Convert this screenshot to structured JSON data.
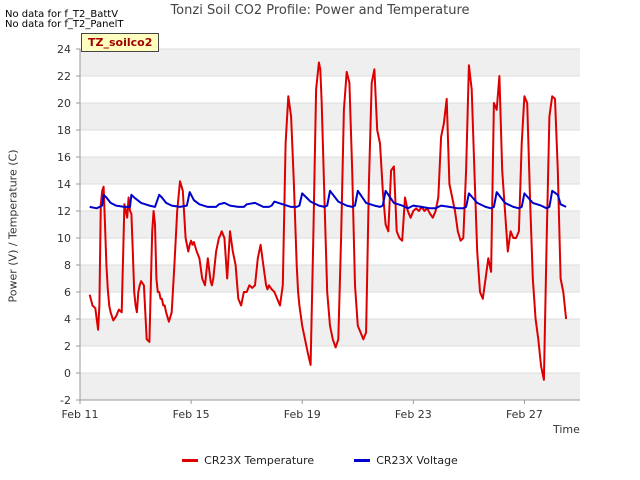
{
  "notes": [
    "No data for f_T2_BattV",
    "No data for f_T2_PanelT"
  ],
  "badge": "TZ_soilco2",
  "colors": {
    "temperature": "#dd0000",
    "voltage": "#0000cc",
    "band": "#efefef",
    "grid": "#dddddd",
    "axis": "#999999"
  },
  "chart_data": {
    "type": "line",
    "title": "Tonzi Soil CO2 Profile: Power and Temperature",
    "xlabel": "Time",
    "ylabel": "Power (V) / Temperature (C)",
    "xlim": [
      11,
      29
    ],
    "ylim": [
      -2,
      24
    ],
    "xticks": [
      {
        "value": 11,
        "label": "Feb 11"
      },
      {
        "value": 15,
        "label": "Feb 15"
      },
      {
        "value": 19,
        "label": "Feb 19"
      },
      {
        "value": 23,
        "label": "Feb 23"
      },
      {
        "value": 27,
        "label": "Feb 27"
      }
    ],
    "yticks": [
      -2,
      0,
      2,
      4,
      6,
      8,
      10,
      12,
      14,
      16,
      18,
      20,
      22,
      24
    ],
    "grid": true,
    "legend_position": "bottom",
    "series": [
      {
        "name": "CR23X Temperature",
        "x": [
          11.35,
          11.45,
          11.55,
          11.65,
          11.7,
          11.75,
          11.8,
          11.85,
          11.9,
          11.95,
          12.0,
          12.05,
          12.1,
          12.15,
          12.2,
          12.3,
          12.4,
          12.5,
          12.6,
          12.7,
          12.75,
          12.8,
          12.85,
          12.9,
          12.95,
          13.0,
          13.05,
          13.1,
          13.15,
          13.2,
          13.3,
          13.4,
          13.5,
          13.6,
          13.65,
          13.7,
          13.75,
          13.8,
          13.85,
          13.9,
          13.95,
          14.0,
          14.05,
          14.1,
          14.2,
          14.3,
          14.4,
          14.5,
          14.6,
          14.7,
          14.8,
          14.9,
          14.95,
          15.0,
          15.05,
          15.1,
          15.2,
          15.3,
          15.4,
          15.5,
          15.6,
          15.7,
          15.75,
          15.8,
          15.85,
          15.9,
          15.95,
          16.0,
          16.05,
          16.1,
          16.2,
          16.3,
          16.4,
          16.5,
          16.6,
          16.7,
          16.8,
          16.9,
          17.0,
          17.1,
          17.2,
          17.3,
          17.4,
          17.5,
          17.6,
          17.7,
          17.75,
          17.8,
          17.9,
          18.0,
          18.1,
          18.2,
          18.3,
          18.4,
          18.5,
          18.6,
          18.7,
          18.75,
          18.8,
          18.85,
          18.9,
          19.0,
          19.1,
          19.2,
          19.3,
          19.4,
          19.5,
          19.6,
          19.65,
          19.7,
          19.8,
          19.9,
          20.0,
          20.1,
          20.2,
          20.3,
          20.4,
          20.5,
          20.6,
          20.7,
          20.8,
          20.9,
          21.0,
          21.1,
          21.2,
          21.3,
          21.4,
          21.5,
          21.6,
          21.7,
          21.8,
          21.9,
          22.0,
          22.1,
          22.2,
          22.3,
          22.4,
          22.5,
          22.6,
          22.7,
          22.8,
          22.9,
          23.0,
          23.1,
          23.2,
          23.3,
          23.4,
          23.5,
          23.6,
          23.7,
          23.8,
          23.9,
          24.0,
          24.1,
          24.2,
          24.3,
          24.4,
          24.5,
          24.6,
          24.7,
          24.8,
          24.9,
          25.0,
          25.1,
          25.2,
          25.3,
          25.4,
          25.5,
          25.6,
          25.7,
          25.8,
          25.9,
          26.0,
          26.1,
          26.2,
          26.3,
          26.4,
          26.5,
          26.6,
          26.7,
          26.8,
          26.9,
          27.0,
          27.1,
          27.2,
          27.3,
          27.4,
          27.5,
          27.6,
          27.7,
          27.8,
          27.9,
          28.0,
          28.1,
          28.2,
          28.3,
          28.4,
          28.5
        ],
        "values": [
          5.8,
          5.0,
          4.8,
          3.2,
          5.0,
          12.5,
          13.5,
          13.8,
          11.0,
          8.0,
          6.2,
          5.0,
          4.5,
          4.2,
          3.9,
          4.2,
          4.7,
          4.5,
          12.5,
          11.5,
          13.0,
          12.0,
          11.8,
          9.0,
          6.0,
          5.0,
          4.5,
          6.0,
          6.5,
          6.8,
          6.5,
          2.5,
          2.3,
          10.5,
          12.0,
          11.0,
          7.0,
          6.0,
          6.0,
          5.5,
          5.5,
          5.0,
          5.0,
          4.5,
          3.8,
          4.5,
          8.0,
          12.0,
          14.2,
          13.5,
          10.0,
          9.0,
          9.5,
          9.8,
          9.5,
          9.7,
          9.0,
          8.5,
          7.0,
          6.5,
          8.5,
          6.8,
          6.5,
          7.0,
          8.0,
          9.0,
          9.5,
          10.0,
          10.2,
          10.5,
          10.0,
          7.0,
          10.5,
          9.0,
          8.0,
          5.5,
          5.0,
          6.0,
          6.0,
          6.5,
          6.3,
          6.5,
          8.5,
          9.5,
          8.0,
          6.5,
          6.2,
          6.5,
          6.2,
          6.0,
          5.5,
          5.0,
          6.5,
          17.0,
          20.5,
          19.0,
          14.0,
          11.0,
          8.0,
          6.0,
          5.0,
          3.5,
          2.5,
          1.5,
          0.6,
          10.0,
          21.0,
          23.0,
          22.5,
          20.0,
          13.0,
          6.0,
          3.5,
          2.5,
          1.9,
          2.5,
          10.0,
          19.5,
          22.3,
          21.5,
          15.0,
          6.5,
          3.5,
          3.0,
          2.5,
          3.0,
          14.0,
          21.5,
          22.5,
          18.0,
          17.0,
          13.5,
          11.0,
          10.5,
          15.0,
          15.3,
          10.5,
          10.0,
          9.8,
          13.0,
          12.0,
          11.5,
          12.0,
          12.2,
          12.0,
          12.3,
          12.0,
          12.2,
          11.8,
          11.5,
          12.0,
          13.0,
          17.5,
          18.5,
          20.3,
          14.0,
          13.0,
          12.0,
          10.5,
          9.8,
          10.0,
          15.0,
          22.8,
          21.0,
          15.0,
          9.0,
          6.0,
          5.5,
          7.0,
          8.5,
          7.5,
          20.0,
          19.5,
          22.0,
          15.0,
          12.0,
          9.0,
          10.5,
          10.0,
          10.0,
          10.5,
          17.0,
          20.5,
          20.0,
          13.0,
          7.0,
          4.0,
          2.5,
          0.5,
          -0.5,
          10.0,
          19.0,
          20.5,
          20.3,
          15.0,
          7.0,
          6.0,
          4.0
        ]
      },
      {
        "name": "CR23X Voltage",
        "x": [
          11.35,
          11.6,
          11.8,
          11.85,
          11.95,
          12.1,
          12.3,
          12.6,
          12.8,
          12.85,
          12.95,
          13.2,
          13.5,
          13.7,
          13.85,
          13.95,
          14.1,
          14.3,
          14.6,
          14.85,
          14.95,
          15.1,
          15.3,
          15.6,
          15.9,
          16.0,
          16.2,
          16.4,
          16.7,
          16.9,
          17.0,
          17.3,
          17.6,
          17.8,
          17.9,
          18.0,
          18.3,
          18.6,
          18.8,
          18.9,
          19.0,
          19.3,
          19.6,
          19.8,
          19.9,
          20.0,
          20.3,
          20.6,
          20.8,
          20.9,
          21.0,
          21.3,
          21.6,
          21.8,
          21.9,
          22.0,
          22.3,
          22.6,
          22.8,
          22.9,
          23.0,
          23.3,
          23.6,
          23.8,
          23.9,
          24.0,
          24.3,
          24.6,
          24.8,
          24.9,
          25.0,
          25.3,
          25.6,
          25.8,
          25.9,
          26.0,
          26.3,
          26.6,
          26.8,
          26.9,
          27.0,
          27.3,
          27.6,
          27.8,
          27.9,
          28.0,
          28.2,
          28.3,
          28.5
        ],
        "values": [
          12.3,
          12.2,
          12.4,
          13.2,
          13.0,
          12.6,
          12.4,
          12.3,
          12.3,
          13.2,
          13.0,
          12.6,
          12.4,
          12.3,
          13.2,
          13.0,
          12.6,
          12.4,
          12.3,
          12.4,
          13.4,
          12.8,
          12.5,
          12.3,
          12.3,
          12.5,
          12.6,
          12.4,
          12.3,
          12.3,
          12.5,
          12.6,
          12.3,
          12.3,
          12.4,
          12.7,
          12.5,
          12.3,
          12.3,
          12.4,
          13.3,
          12.7,
          12.4,
          12.3,
          12.4,
          13.5,
          12.7,
          12.4,
          12.3,
          12.4,
          13.5,
          12.6,
          12.4,
          12.3,
          12.4,
          13.5,
          12.6,
          12.4,
          12.2,
          12.3,
          12.4,
          12.3,
          12.2,
          12.2,
          12.3,
          12.4,
          12.3,
          12.2,
          12.2,
          12.3,
          13.3,
          12.6,
          12.3,
          12.2,
          12.3,
          13.4,
          12.6,
          12.3,
          12.2,
          12.3,
          13.3,
          12.6,
          12.4,
          12.2,
          12.3,
          13.5,
          13.2,
          12.5,
          12.3
        ]
      }
    ]
  }
}
